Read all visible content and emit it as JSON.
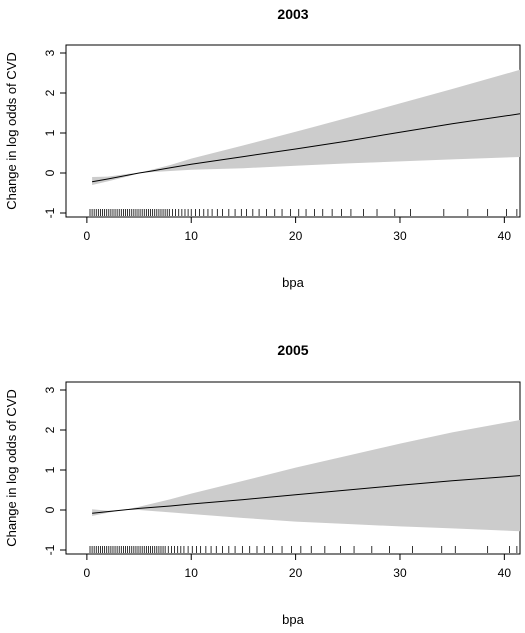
{
  "chart_data": [
    {
      "type": "line",
      "title": "2003",
      "xlabel": "bpa",
      "ylabel": "Change in log odds of CVD",
      "xlim": [
        -2,
        41.5
      ],
      "ylim": [
        -1.1,
        3.2
      ],
      "xticks": [
        0,
        10,
        20,
        30,
        40
      ],
      "yticks": [
        -1,
        0,
        1,
        2,
        3
      ],
      "grid": false,
      "legend": "none",
      "series": [
        {
          "x": [
            0.5,
            2,
            4,
            5,
            6,
            8,
            10,
            15,
            20,
            25,
            30,
            35,
            41.5
          ],
          "values": [
            -0.22,
            -0.15,
            -0.05,
            0.0,
            0.04,
            0.13,
            0.22,
            0.41,
            0.6,
            0.8,
            1.02,
            1.23,
            1.48
          ]
        }
      ],
      "confidence_band": {
        "x": [
          0.5,
          2,
          4,
          5,
          6,
          8,
          10,
          15,
          20,
          25,
          30,
          35,
          41.5
        ],
        "lower": [
          -0.3,
          -0.21,
          -0.08,
          0.0,
          0.02,
          0.05,
          0.08,
          0.12,
          0.18,
          0.24,
          0.29,
          0.34,
          0.4
        ],
        "upper": [
          -0.1,
          -0.09,
          -0.02,
          0.0,
          0.07,
          0.2,
          0.36,
          0.69,
          1.03,
          1.38,
          1.74,
          2.1,
          2.58
        ]
      },
      "rug": [
        0.3,
        0.5,
        0.7,
        0.9,
        1.1,
        1.3,
        1.5,
        1.7,
        1.9,
        2.1,
        2.3,
        2.5,
        2.7,
        2.9,
        3.1,
        3.3,
        3.5,
        3.7,
        3.9,
        4.1,
        4.3,
        4.5,
        4.7,
        4.9,
        5.1,
        5.3,
        5.5,
        5.7,
        5.9,
        6.1,
        6.3,
        6.5,
        6.7,
        6.9,
        7.1,
        7.3,
        7.5,
        7.7,
        7.9,
        8.2,
        8.5,
        8.8,
        9.1,
        9.4,
        9.7,
        10.0,
        10.4,
        10.8,
        11.2,
        11.6,
        12.0,
        12.5,
        13.0,
        13.6,
        14.2,
        14.8,
        15.3,
        15.9,
        16.5,
        17.2,
        18.0,
        18.7,
        19.5,
        20.3,
        21.0,
        21.8,
        22.6,
        23.5,
        24.4,
        25.3,
        26.5,
        27.8,
        29.5,
        31.0,
        34.2,
        36.5,
        38.4,
        40.2,
        41.2
      ]
    },
    {
      "type": "line",
      "title": "2005",
      "xlabel": "bpa",
      "ylabel": "Change in log odds of CVD",
      "xlim": [
        -2,
        41.5
      ],
      "ylim": [
        -1.1,
        3.2
      ],
      "xticks": [
        0,
        10,
        20,
        30,
        40
      ],
      "yticks": [
        -1,
        0,
        1,
        2,
        3
      ],
      "grid": false,
      "legend": "none",
      "series": [
        {
          "x": [
            0.5,
            2,
            3.5,
            5,
            8,
            10,
            15,
            20,
            25,
            30,
            35,
            41.5
          ],
          "values": [
            -0.08,
            -0.04,
            0.0,
            0.04,
            0.1,
            0.15,
            0.26,
            0.38,
            0.5,
            0.62,
            0.73,
            0.86
          ]
        }
      ],
      "confidence_band": {
        "x": [
          0.5,
          2,
          3.5,
          5,
          8,
          10,
          15,
          20,
          25,
          30,
          35,
          41.5
        ],
        "lower": [
          -0.15,
          -0.07,
          0.0,
          0.0,
          -0.06,
          -0.1,
          -0.2,
          -0.29,
          -0.35,
          -0.41,
          -0.46,
          -0.53
        ],
        "upper": [
          0.02,
          -0.02,
          0.0,
          0.08,
          0.27,
          0.41,
          0.73,
          1.06,
          1.36,
          1.66,
          1.94,
          2.25
        ]
      },
      "rug": [
        0.3,
        0.5,
        0.7,
        0.9,
        1.1,
        1.3,
        1.5,
        1.7,
        1.9,
        2.1,
        2.3,
        2.5,
        2.7,
        2.9,
        3.1,
        3.3,
        3.5,
        3.7,
        3.9,
        4.1,
        4.3,
        4.5,
        4.7,
        4.9,
        5.1,
        5.3,
        5.5,
        5.7,
        5.9,
        6.1,
        6.3,
        6.5,
        6.7,
        6.9,
        7.1,
        7.3,
        7.5,
        7.8,
        8.1,
        8.4,
        8.7,
        9.0,
        9.3,
        9.7,
        10.1,
        10.5,
        10.9,
        11.4,
        11.9,
        12.4,
        13.0,
        13.6,
        14.2,
        14.9,
        15.6,
        16.3,
        17.0,
        17.8,
        18.7,
        19.6,
        20.5,
        21.5,
        22.8,
        24.3,
        25.6,
        27.3,
        29.0,
        31.2,
        34.0,
        35.3,
        38.4,
        40.5,
        41.2
      ]
    }
  ]
}
